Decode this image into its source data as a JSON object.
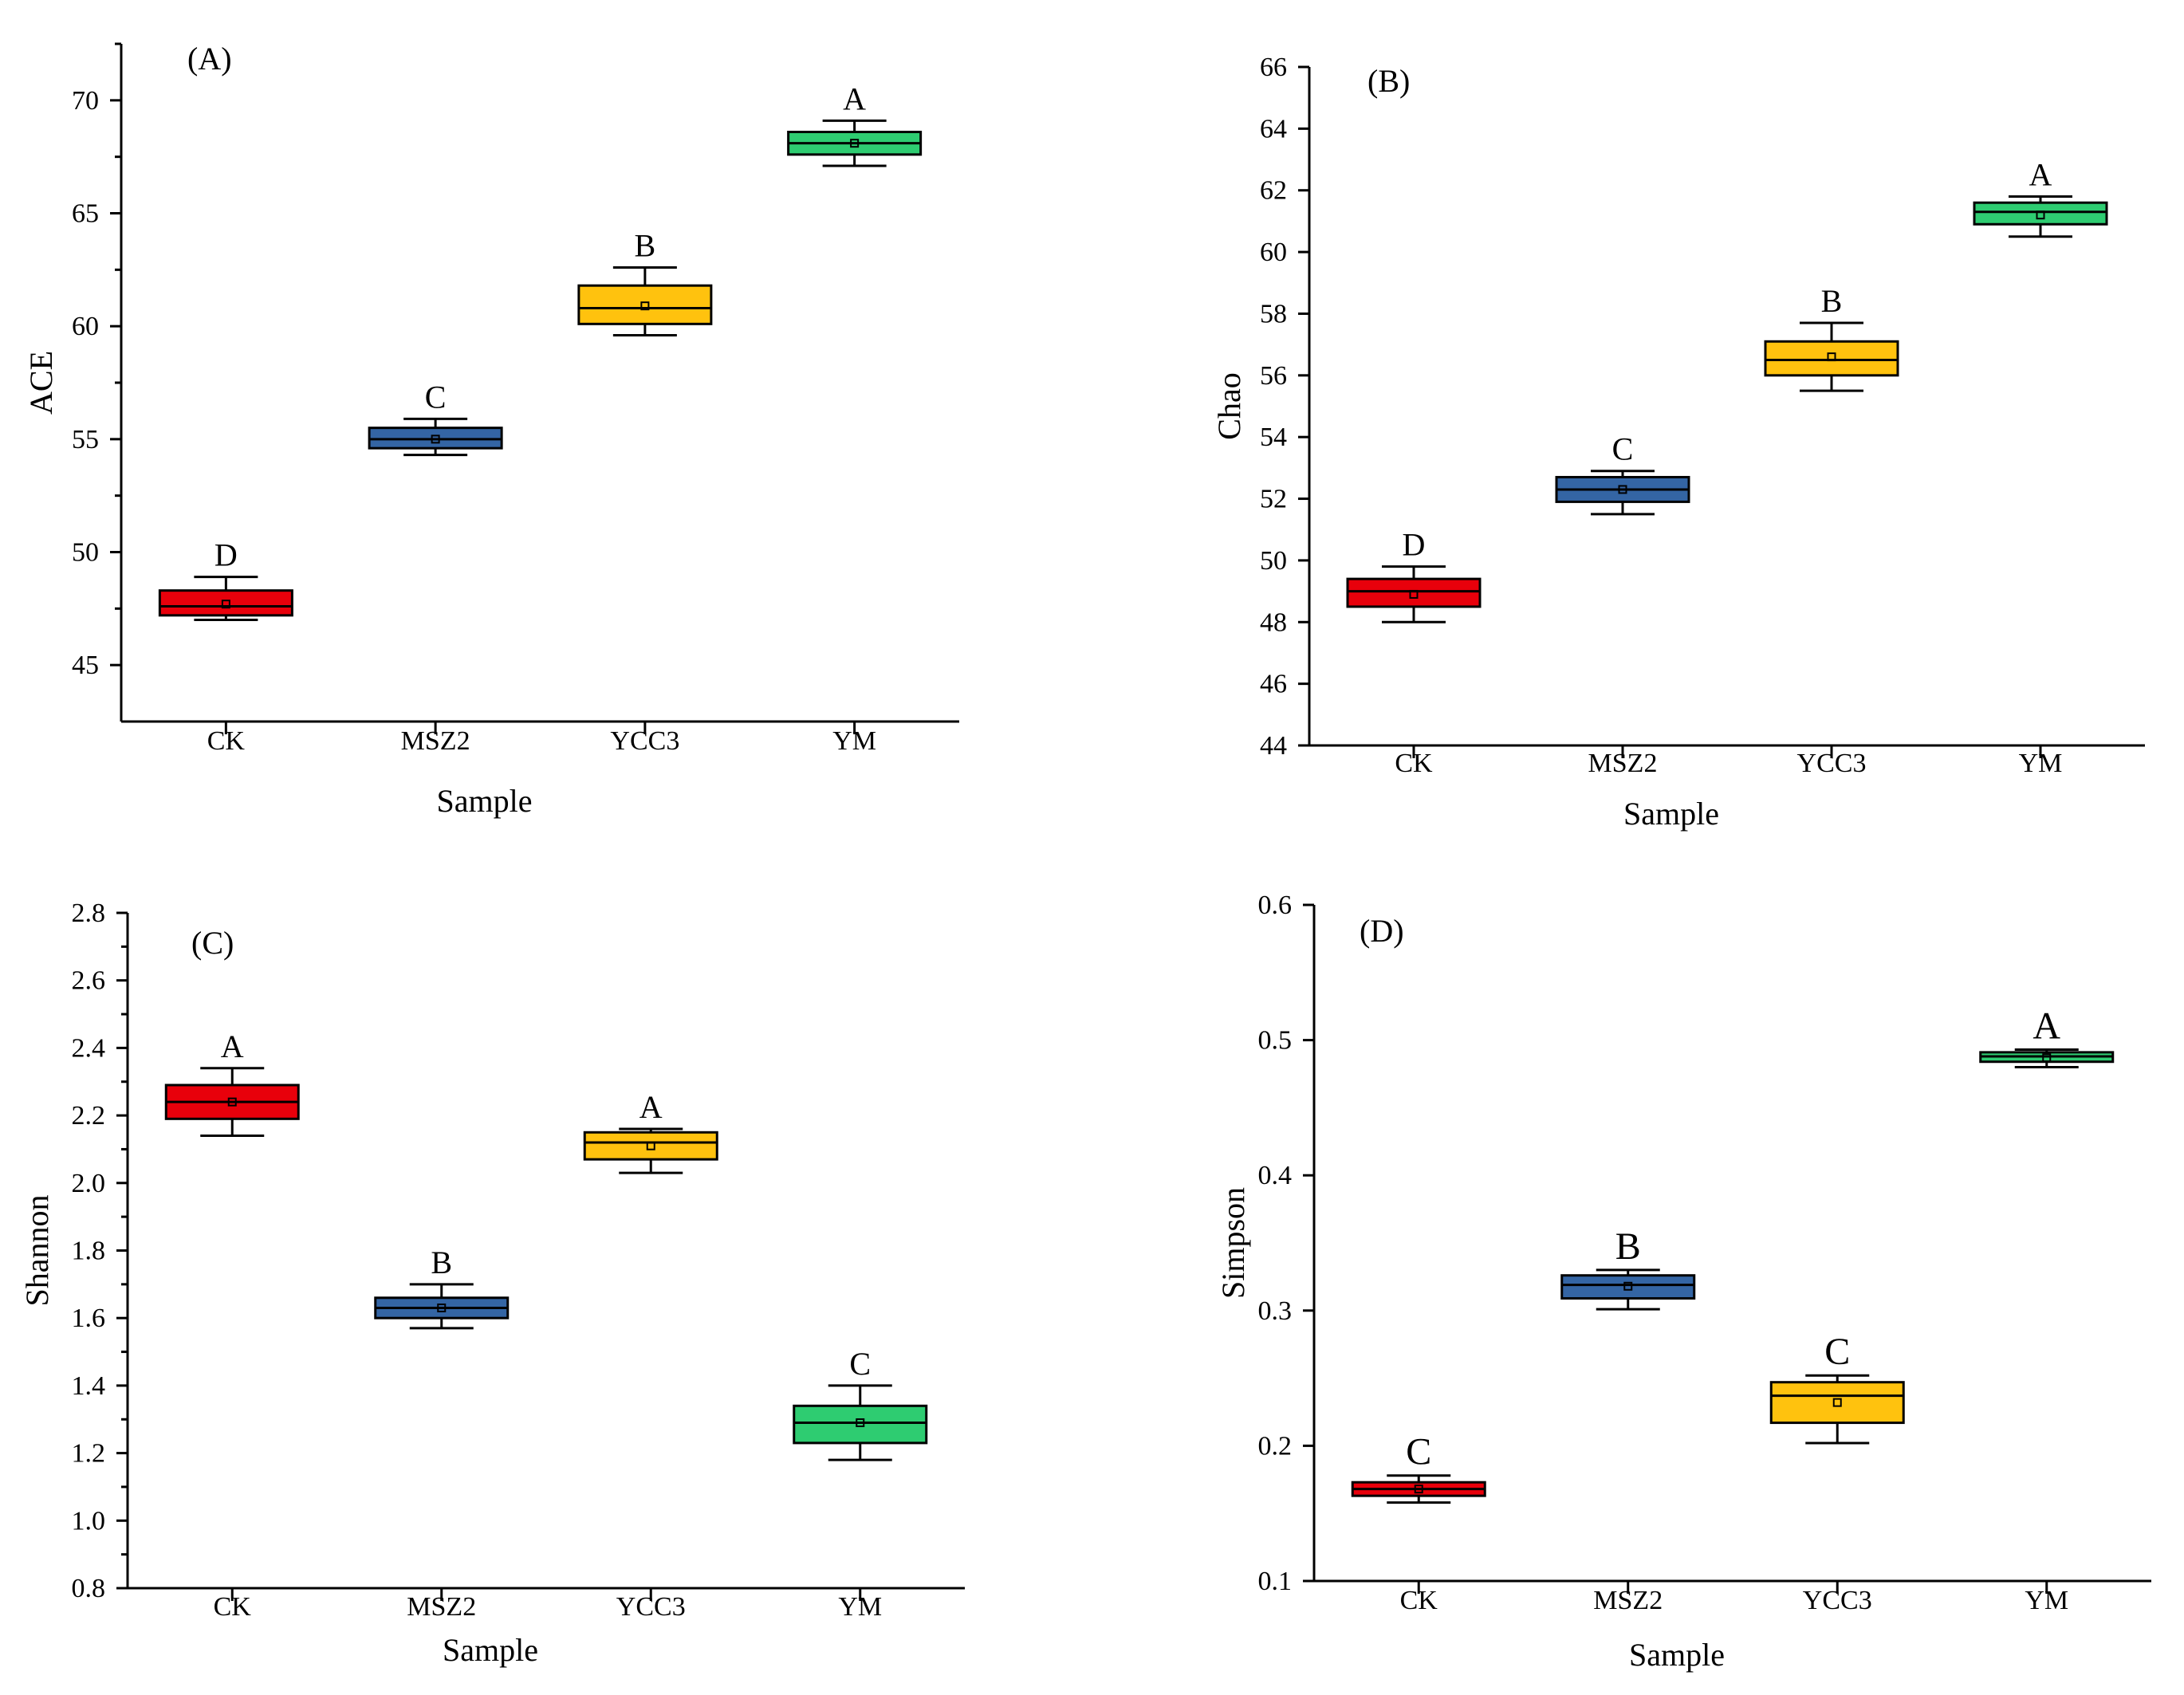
{
  "colors": {
    "CK": "#e8000b",
    "MSZ2": "#3465a4",
    "YCC3": "#ffc20e",
    "YM": "#2ecc71"
  },
  "chart_data": [
    {
      "type": "box",
      "panel": "(A)",
      "xlabel": "Sample",
      "ylabel": "ACE",
      "ylim": [
        42.5,
        72.5
      ],
      "yticks": [
        45,
        50,
        55,
        60,
        65,
        70
      ],
      "ytick_labels": [
        "45",
        "50",
        "55",
        "60",
        "65",
        "70"
      ],
      "categories": [
        "CK",
        "MSZ2",
        "YCC3",
        "YM"
      ],
      "boxes": [
        {
          "name": "CK",
          "min": 47.0,
          "q1": 47.2,
          "median": 47.6,
          "q3": 48.3,
          "max": 48.9,
          "mean": 47.7,
          "letter": "D"
        },
        {
          "name": "MSZ2",
          "min": 54.3,
          "q1": 54.6,
          "median": 55.0,
          "q3": 55.5,
          "max": 55.9,
          "mean": 55.0,
          "letter": "C"
        },
        {
          "name": "YCC3",
          "min": 59.6,
          "q1": 60.1,
          "median": 60.8,
          "q3": 61.8,
          "max": 62.6,
          "mean": 60.9,
          "letter": "B"
        },
        {
          "name": "YM",
          "min": 67.1,
          "q1": 67.6,
          "median": 68.1,
          "q3": 68.6,
          "max": 69.1,
          "mean": 68.1,
          "letter": "A"
        }
      ]
    },
    {
      "type": "box",
      "panel": "(B)",
      "xlabel": "Sample",
      "ylabel": "Chao",
      "ylim": [
        44,
        66
      ],
      "yticks": [
        44,
        46,
        48,
        50,
        52,
        54,
        56,
        58,
        60,
        62,
        64,
        66
      ],
      "ytick_labels": [
        "44",
        "46",
        "48",
        "50",
        "52",
        "54",
        "56",
        "58",
        "60",
        "62",
        "64",
        "66"
      ],
      "categories": [
        "CK",
        "MSZ2",
        "YCC3",
        "YM"
      ],
      "boxes": [
        {
          "name": "CK",
          "min": 48.0,
          "q1": 48.5,
          "median": 49.0,
          "q3": 49.4,
          "max": 49.8,
          "mean": 48.9,
          "letter": "D"
        },
        {
          "name": "MSZ2",
          "min": 51.5,
          "q1": 51.9,
          "median": 52.3,
          "q3": 52.7,
          "max": 52.9,
          "mean": 52.3,
          "letter": "C"
        },
        {
          "name": "YCC3",
          "min": 55.5,
          "q1": 56.0,
          "median": 56.5,
          "q3": 57.1,
          "max": 57.7,
          "mean": 56.6,
          "letter": "B"
        },
        {
          "name": "YM",
          "min": 60.5,
          "q1": 60.9,
          "median": 61.3,
          "q3": 61.6,
          "max": 61.8,
          "mean": 61.2,
          "letter": "A"
        }
      ]
    },
    {
      "type": "box",
      "panel": "(C)",
      "xlabel": "Sample",
      "ylabel": "Shannon",
      "ylim": [
        0.8,
        2.8
      ],
      "yticks": [
        0.8,
        1.0,
        1.2,
        1.4,
        1.6,
        1.8,
        2.0,
        2.2,
        2.4,
        2.6,
        2.8
      ],
      "ytick_labels": [
        "0.8",
        "1.0",
        "1.2",
        "1.4",
        "1.6",
        "1.8",
        "2.0",
        "2.2",
        "2.4",
        "2.6",
        "2.8"
      ],
      "categories": [
        "CK",
        "MSZ2",
        "YCC3",
        "YM"
      ],
      "boxes": [
        {
          "name": "CK",
          "min": 2.14,
          "q1": 2.19,
          "median": 2.24,
          "q3": 2.29,
          "max": 2.34,
          "mean": 2.24,
          "letter": "A"
        },
        {
          "name": "MSZ2",
          "min": 1.57,
          "q1": 1.6,
          "median": 1.63,
          "q3": 1.66,
          "max": 1.7,
          "mean": 1.63,
          "letter": "B"
        },
        {
          "name": "YCC3",
          "min": 2.03,
          "q1": 2.07,
          "median": 2.12,
          "q3": 2.15,
          "max": 2.16,
          "mean": 2.11,
          "letter": "A"
        },
        {
          "name": "YM",
          "min": 1.18,
          "q1": 1.23,
          "median": 1.29,
          "q3": 1.34,
          "max": 1.4,
          "mean": 1.29,
          "letter": "C"
        }
      ]
    },
    {
      "type": "box",
      "panel": "(D)",
      "xlabel": "Sample",
      "ylabel": "Simpson",
      "ylim": [
        0.1,
        0.6
      ],
      "yticks": [
        0.1,
        0.2,
        0.3,
        0.4,
        0.5,
        0.6
      ],
      "ytick_labels": [
        "0.1",
        "0.2",
        "0.3",
        "0.4",
        "0.5",
        "0.6"
      ],
      "categories": [
        "CK",
        "MSZ2",
        "YCC3",
        "YM"
      ],
      "boxes": [
        {
          "name": "CK",
          "min": 0.158,
          "q1": 0.163,
          "median": 0.168,
          "q3": 0.173,
          "max": 0.178,
          "mean": 0.168,
          "letter": "C"
        },
        {
          "name": "MSZ2",
          "min": 0.301,
          "q1": 0.309,
          "median": 0.319,
          "q3": 0.326,
          "max": 0.33,
          "mean": 0.318,
          "letter": "B"
        },
        {
          "name": "YCC3",
          "min": 0.202,
          "q1": 0.217,
          "median": 0.237,
          "q3": 0.247,
          "max": 0.252,
          "mean": 0.232,
          "letter": "C"
        },
        {
          "name": "YM",
          "min": 0.48,
          "q1": 0.484,
          "median": 0.488,
          "q3": 0.491,
          "max": 0.493,
          "mean": 0.487,
          "letter": "A"
        }
      ]
    }
  ]
}
